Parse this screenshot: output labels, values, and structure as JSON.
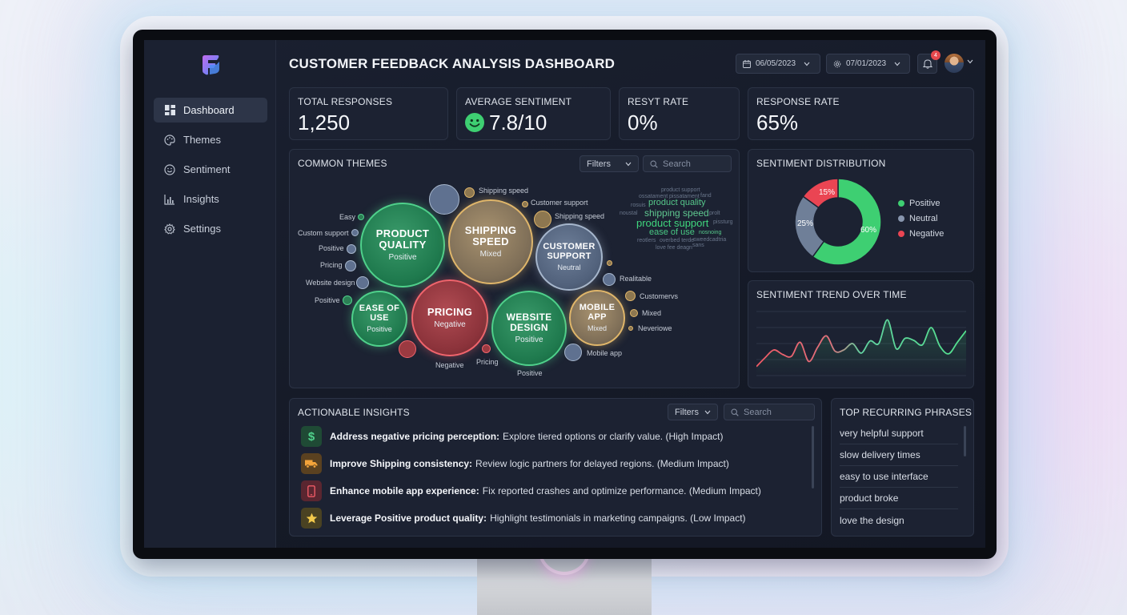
{
  "sidebar": {
    "items": [
      {
        "label": "Dashboard",
        "icon": "dashboard-icon",
        "active": true
      },
      {
        "label": "Themes",
        "icon": "palette-icon",
        "active": false
      },
      {
        "label": "Sentiment",
        "icon": "smiley-icon",
        "active": false
      },
      {
        "label": "Insights",
        "icon": "bar-chart-icon",
        "active": false
      },
      {
        "label": "Settings",
        "icon": "gear-icon",
        "active": false
      }
    ]
  },
  "header": {
    "title": "CUSTOMER FEEDBACK ANALYSIS DASHBOARD",
    "date_start": "06/05/2023",
    "date_end": "07/01/2023",
    "notification_count": "4"
  },
  "stats": {
    "total_responses": {
      "label": "TOTAL RESPONSES",
      "value": "1,250"
    },
    "average_sentiment": {
      "label": "AVERAGE SENTIMENT",
      "value": "7.8/10"
    },
    "resyt_rate": {
      "label": "RESYT RATE",
      "value": "0%"
    },
    "response_rate": {
      "label": "RESPONSE RATE",
      "value": "65%"
    }
  },
  "themes": {
    "title": "COMMON THEMES",
    "filters_label": "Filters",
    "search_placeholder": "Search",
    "bubbles": [
      {
        "title_lines": [
          "PRODUCT",
          "QUALITY"
        ],
        "sentiment": "Positive"
      },
      {
        "title_lines": [
          "SHIPPING",
          "SPEED"
        ],
        "sentiment": "Mixed"
      },
      {
        "title_lines": [
          "CUSTOMER",
          "SUPPORT"
        ],
        "sentiment": "Neutral"
      },
      {
        "title_lines": [
          "EASE OF",
          "USE"
        ],
        "sentiment": "Positive"
      },
      {
        "title_lines": [
          "PRICING"
        ],
        "sentiment": "Negative"
      },
      {
        "title_lines": [
          "WEBSITE",
          "DESIGN"
        ],
        "sentiment": "Positive"
      },
      {
        "title_lines": [
          "MOBILE",
          "APP"
        ],
        "sentiment": "Mixed"
      }
    ],
    "small_labels": [
      "Shipping speed",
      "Customer support",
      "Shipping speed",
      "Easy",
      "Custom support",
      "Positive",
      "Pricing",
      "Website design",
      "Positive",
      "Realitable",
      "Customervs",
      "Mixed",
      "Neveriowe",
      "Mobile app",
      "Negative",
      "Pricing",
      "Positive"
    ],
    "word_cloud": [
      "product support",
      "ossatament",
      "pissatament",
      "fand",
      "rosuis",
      "product quality",
      "shipping speed",
      "noustal",
      "prolt",
      "product support",
      "pissturg",
      "ease of use",
      "nosnoing",
      "reotlers",
      "overbed terde",
      "sweedcadtria",
      "love fee deagn",
      "sans"
    ]
  },
  "sentiment_distribution": {
    "title": "SENTIMENT DISTRIBUTION",
    "labels": {
      "positive": "60%",
      "neutral": "25%",
      "negative": "15%"
    },
    "legend": [
      "Positive",
      "Neutral",
      "Negative"
    ]
  },
  "sentiment_trend": {
    "title": "SENTIMENT TREND OVER TIME"
  },
  "insights": {
    "title": "ACTIONABLE INSIGHTS",
    "filters_label": "Filters",
    "search_placeholder": "Search",
    "items": [
      {
        "bold": "Address negative pricing perception:",
        "text": "Explore tiered options or clarify value. (High Impact)",
        "icon": "dollar-icon"
      },
      {
        "bold": "Improve Shipping consistency:",
        "text": "Review logic partners for delayed regions. (Medium Impact)",
        "icon": "truck-icon"
      },
      {
        "bold": "Enhance mobile app experience:",
        "text": "Fix reported crashes and optimize performance. (Medium Impact)",
        "icon": "phone-icon"
      },
      {
        "bold": "Leverage Positive product quality:",
        "text": "Highlight testimonials in marketing campaigns. (Low Impact)",
        "icon": "star-icon"
      }
    ]
  },
  "phrases": {
    "title": "TOP RECURRING PHRASES",
    "items": [
      "very helpful support",
      "slow delivery times",
      "easy to use interface",
      "product broke",
      "love the design"
    ]
  },
  "chart_data": [
    {
      "type": "pie",
      "title": "SENTIMENT DISTRIBUTION",
      "categories": [
        "Positive",
        "Neutral",
        "Negative"
      ],
      "values": [
        60,
        25,
        15
      ],
      "colors": [
        "#3ecf72",
        "#6f7f98",
        "#ea4553"
      ],
      "legend": "right"
    },
    {
      "type": "line",
      "title": "SENTIMENT TREND OVER TIME",
      "xlabel": "",
      "ylabel": "",
      "ylim": [
        0,
        100
      ],
      "grid": true,
      "series": [
        {
          "values": [
            14,
            28,
            40,
            33,
            30,
            52,
            22,
            44,
            62,
            38,
            40,
            50,
            35,
            54,
            50,
            87,
            42,
            58,
            55,
            48,
            75,
            46,
            34,
            52,
            70
          ]
        }
      ]
    }
  ]
}
